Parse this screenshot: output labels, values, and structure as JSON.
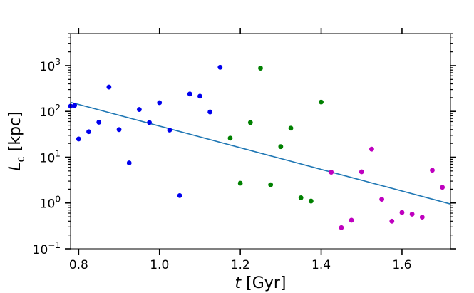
{
  "chart_data": {
    "type": "scatter",
    "title": "",
    "xlabel": {
      "italic": "t",
      "rest": " [Gyr]"
    },
    "ylabel": {
      "italic": "L",
      "sub": "c",
      "rest": "  [kpc]"
    },
    "xlim": [
      0.78,
      1.72
    ],
    "ylim_log10": [
      -1,
      3.7
    ],
    "yscale": "log",
    "x_ticks": [
      {
        "value": 0.8,
        "label": "0.8"
      },
      {
        "value": 1.0,
        "label": "1.0"
      },
      {
        "value": 1.2,
        "label": "1.2"
      },
      {
        "value": 1.4,
        "label": "1.4"
      },
      {
        "value": 1.6,
        "label": "1.6"
      }
    ],
    "y_ticks": [
      {
        "exp": -1,
        "base": "10",
        "sup": "−1"
      },
      {
        "exp": 0,
        "base": "10",
        "sup": "0"
      },
      {
        "exp": 1,
        "base": "10",
        "sup": "1"
      },
      {
        "exp": 2,
        "base": "10",
        "sup": "2"
      },
      {
        "exp": 3,
        "base": "10",
        "sup": "3"
      }
    ],
    "series": [
      {
        "name": "blue",
        "color": "#0000ee",
        "points": [
          [
            0.78,
            130
          ],
          [
            0.79,
            135
          ],
          [
            0.8,
            25
          ],
          [
            0.825,
            36
          ],
          [
            0.85,
            58
          ],
          [
            0.875,
            340
          ],
          [
            0.9,
            40
          ],
          [
            0.925,
            7.5
          ],
          [
            0.95,
            110
          ],
          [
            0.975,
            57
          ],
          [
            1.0,
            155
          ],
          [
            1.025,
            39
          ],
          [
            1.05,
            1.45
          ],
          [
            1.075,
            240
          ],
          [
            1.1,
            215
          ],
          [
            1.125,
            97
          ],
          [
            1.15,
            920
          ]
        ]
      },
      {
        "name": "green",
        "color": "#008000",
        "points": [
          [
            1.175,
            26
          ],
          [
            1.2,
            2.7
          ],
          [
            1.225,
            57
          ],
          [
            1.25,
            880
          ],
          [
            1.275,
            2.5
          ],
          [
            1.3,
            17
          ],
          [
            1.325,
            43
          ],
          [
            1.35,
            1.3
          ],
          [
            1.375,
            1.1
          ],
          [
            1.4,
            160
          ]
        ]
      },
      {
        "name": "magenta",
        "color": "#bf00bf",
        "points": [
          [
            1.425,
            4.7
          ],
          [
            1.45,
            0.29
          ],
          [
            1.475,
            0.42
          ],
          [
            1.5,
            4.8
          ],
          [
            1.525,
            15
          ],
          [
            1.55,
            1.2
          ],
          [
            1.575,
            0.4
          ],
          [
            1.6,
            0.62
          ],
          [
            1.625,
            0.57
          ],
          [
            1.65,
            0.49
          ],
          [
            1.675,
            5.2
          ],
          [
            1.7,
            2.2
          ]
        ]
      }
    ],
    "fit_line": {
      "color": "#1f77b4",
      "points": [
        [
          0.78,
          158
        ],
        [
          1.72,
          0.95
        ]
      ]
    }
  }
}
